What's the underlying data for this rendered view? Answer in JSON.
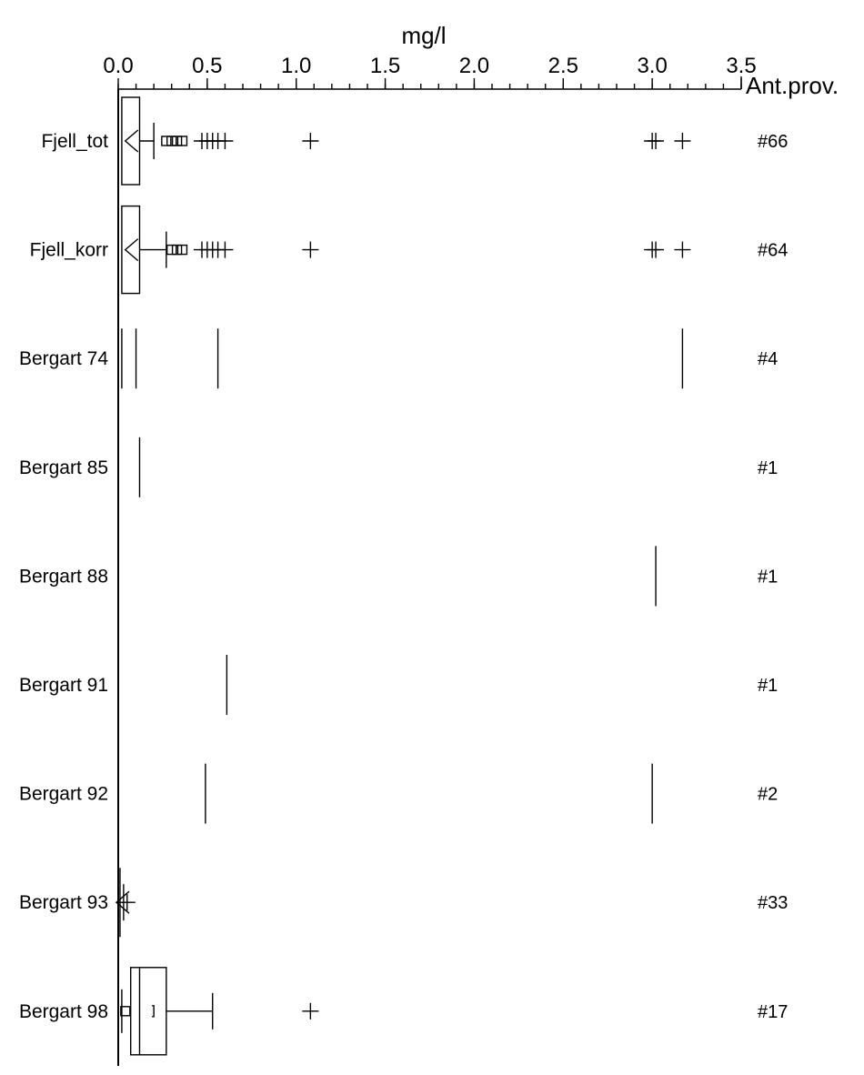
{
  "chart_data": {
    "type": "boxplot",
    "title": "",
    "xlabel": "mg/l",
    "xlim": [
      0,
      3.5
    ],
    "x_ticks": [
      "0.0",
      "0.5",
      "1.0",
      "1.5",
      "2.0",
      "2.5",
      "3.0",
      "3.5"
    ],
    "x_tick_values": [
      0,
      0.5,
      1.0,
      1.5,
      2.0,
      2.5,
      3.0,
      3.5
    ],
    "x_minor_tick_step": 0.1,
    "count_header": "Ant.prov.",
    "grid": false,
    "series": [
      {
        "label": "Fjell_tot",
        "count": "#66",
        "kind": "box",
        "q1": 0.02,
        "median": 0.06,
        "q3": 0.12,
        "mean": 0.05,
        "whisker_high": 0.2,
        "mild_outliers": [
          0.27,
          0.3,
          0.33,
          0.36
        ],
        "extreme_outliers": [
          0.47,
          0.5,
          0.53,
          0.56,
          0.6,
          1.08,
          3.0,
          3.02,
          3.17
        ]
      },
      {
        "label": "Fjell_korr",
        "count": "#64",
        "kind": "box",
        "q1": 0.02,
        "median": 0.06,
        "q3": 0.12,
        "mean": 0.05,
        "whisker_high": 0.27,
        "mild_outliers": [
          0.3,
          0.33,
          0.36
        ],
        "extreme_outliers": [
          0.47,
          0.5,
          0.53,
          0.56,
          0.6,
          1.08,
          3.0,
          3.02,
          3.17
        ]
      },
      {
        "label": "Bergart 74",
        "count": "#4",
        "kind": "values",
        "values": [
          0.02,
          0.1,
          0.56,
          3.17
        ]
      },
      {
        "label": "Bergart 85",
        "count": "#1",
        "kind": "values",
        "values": [
          0.12
        ]
      },
      {
        "label": "Bergart 88",
        "count": "#1",
        "kind": "values",
        "values": [
          3.02
        ]
      },
      {
        "label": "Bergart 91",
        "count": "#1",
        "kind": "values",
        "values": [
          0.61
        ]
      },
      {
        "label": "Bergart 92",
        "count": "#2",
        "kind": "values",
        "values": [
          0.49,
          3.0
        ]
      },
      {
        "label": "Bergart 93",
        "count": "#33",
        "kind": "box",
        "q1": 0.01,
        "median": 0.01,
        "q3": 0.02,
        "mean": 0.02,
        "whisker_high": 0.03,
        "mild_outliers": [],
        "extreme_outliers": [
          0.05
        ]
      },
      {
        "label": "Bergart 98",
        "count": "#17",
        "kind": "box",
        "q1": 0.07,
        "median": 0.12,
        "q3": 0.27,
        "mean": 0.2,
        "whisker_low": 0.02,
        "whisker_high": 0.53,
        "mild_outliers": [
          0.04
        ],
        "extreme_outliers": [
          1.08
        ]
      }
    ]
  }
}
